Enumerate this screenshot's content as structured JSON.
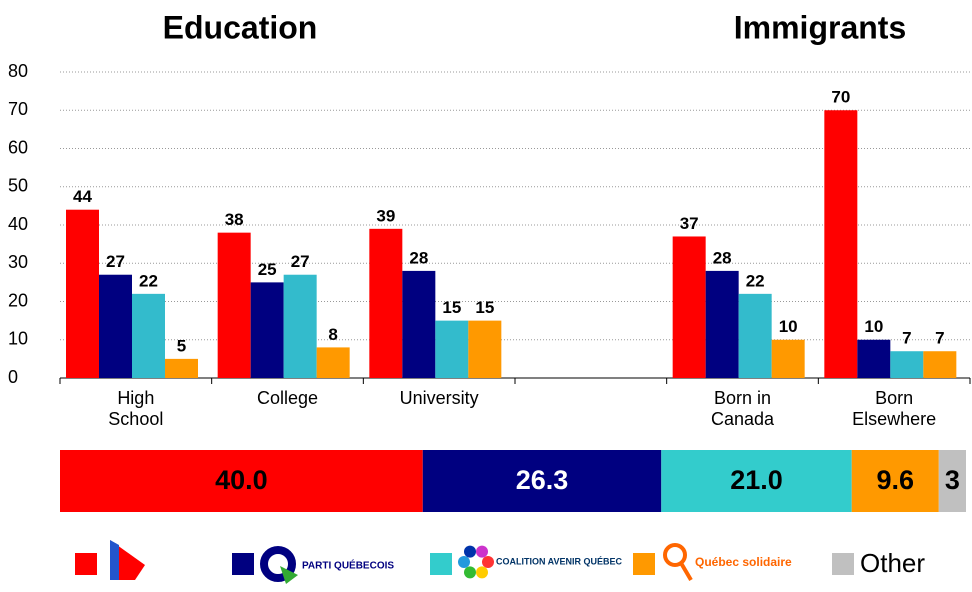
{
  "chart_data": [
    {
      "type": "grouped_bar",
      "annotations": [
        "Education",
        "Immigrants"
      ],
      "categories": [
        "High School",
        "College",
        "University",
        null,
        "Born in Canada",
        "Born Elsewhere"
      ],
      "series": [
        {
          "color": "#ff0000",
          "values": [
            44,
            38,
            39,
            null,
            37,
            70
          ]
        },
        {
          "color": "#000080",
          "values": [
            27,
            25,
            28,
            null,
            28,
            10
          ]
        },
        {
          "color": "#33bbcc",
          "values": [
            22,
            27,
            15,
            null,
            22,
            7
          ]
        },
        {
          "color": "#ff9900",
          "values": [
            5,
            8,
            15,
            null,
            10,
            7
          ]
        }
      ],
      "ylim": [
        0,
        80
      ],
      "yticks": [
        0,
        10,
        20,
        30,
        40,
        50,
        60,
        70,
        80
      ],
      "grid": true
    },
    {
      "type": "stacked_bar_horizontal",
      "categories": [
        null,
        "PARTI QUÉBECOIS",
        "COALITION AVENIR QUÉBEC",
        "Québec solidaire",
        "Other"
      ],
      "values": [
        40,
        26.3,
        21,
        9.6,
        3
      ],
      "value_labels": [
        "40.0",
        "26.3",
        "21.0",
        "9.6",
        "3"
      ],
      "colors": [
        "#ff0000",
        "#000080",
        "#33cccc",
        "#ff9900",
        "#c0c0c0"
      ],
      "label_colors": [
        "#000000",
        "#ffffff",
        "#000000",
        "#000000",
        "#000000"
      ]
    }
  ]
}
